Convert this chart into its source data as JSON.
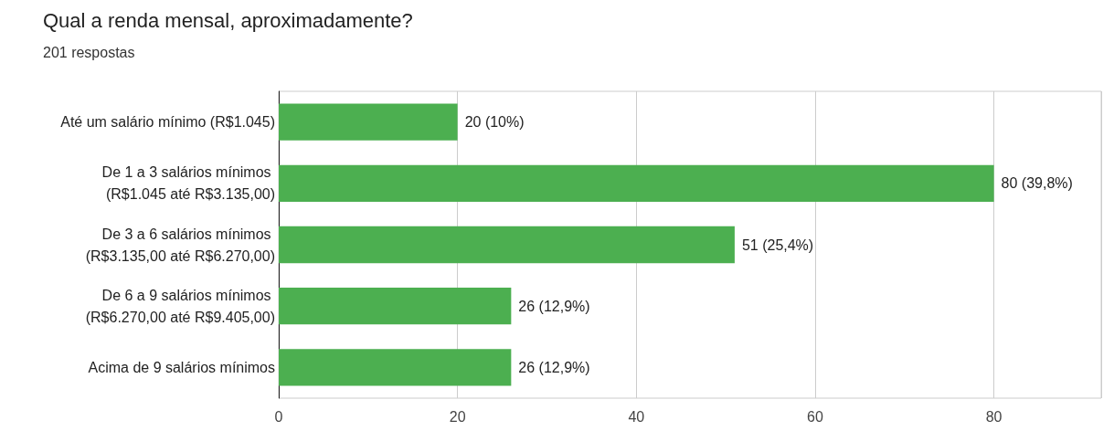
{
  "chart_data": {
    "type": "bar",
    "orientation": "horizontal",
    "title": "Qual a renda mensal, aproximadamente?",
    "subtitle": "201 respostas",
    "categories": [
      "Até um salário mínimo (R$1.045)",
      "De 1 a 3 salários mínimos (R$1.045 até R$3.135,00)",
      "De 3 a 6 salários mínimos (R$3.135,00 até R$6.270,00)",
      "De 6 a 9 salários mínimos (R$6.270,00 até R$9.405,00)",
      "Acima de 9 salários mínimos"
    ],
    "values": [
      20,
      80,
      51,
      26,
      26
    ],
    "value_labels": [
      "20 (10%)",
      "80 (39,8%)",
      "51 (25,4%)",
      "26 (12,9%)",
      "26 (12,9%)"
    ],
    "color": "#4caf50",
    "xlim": [
      0,
      92
    ],
    "xticks": [
      0,
      20,
      40,
      60,
      80
    ],
    "grid": "x"
  }
}
